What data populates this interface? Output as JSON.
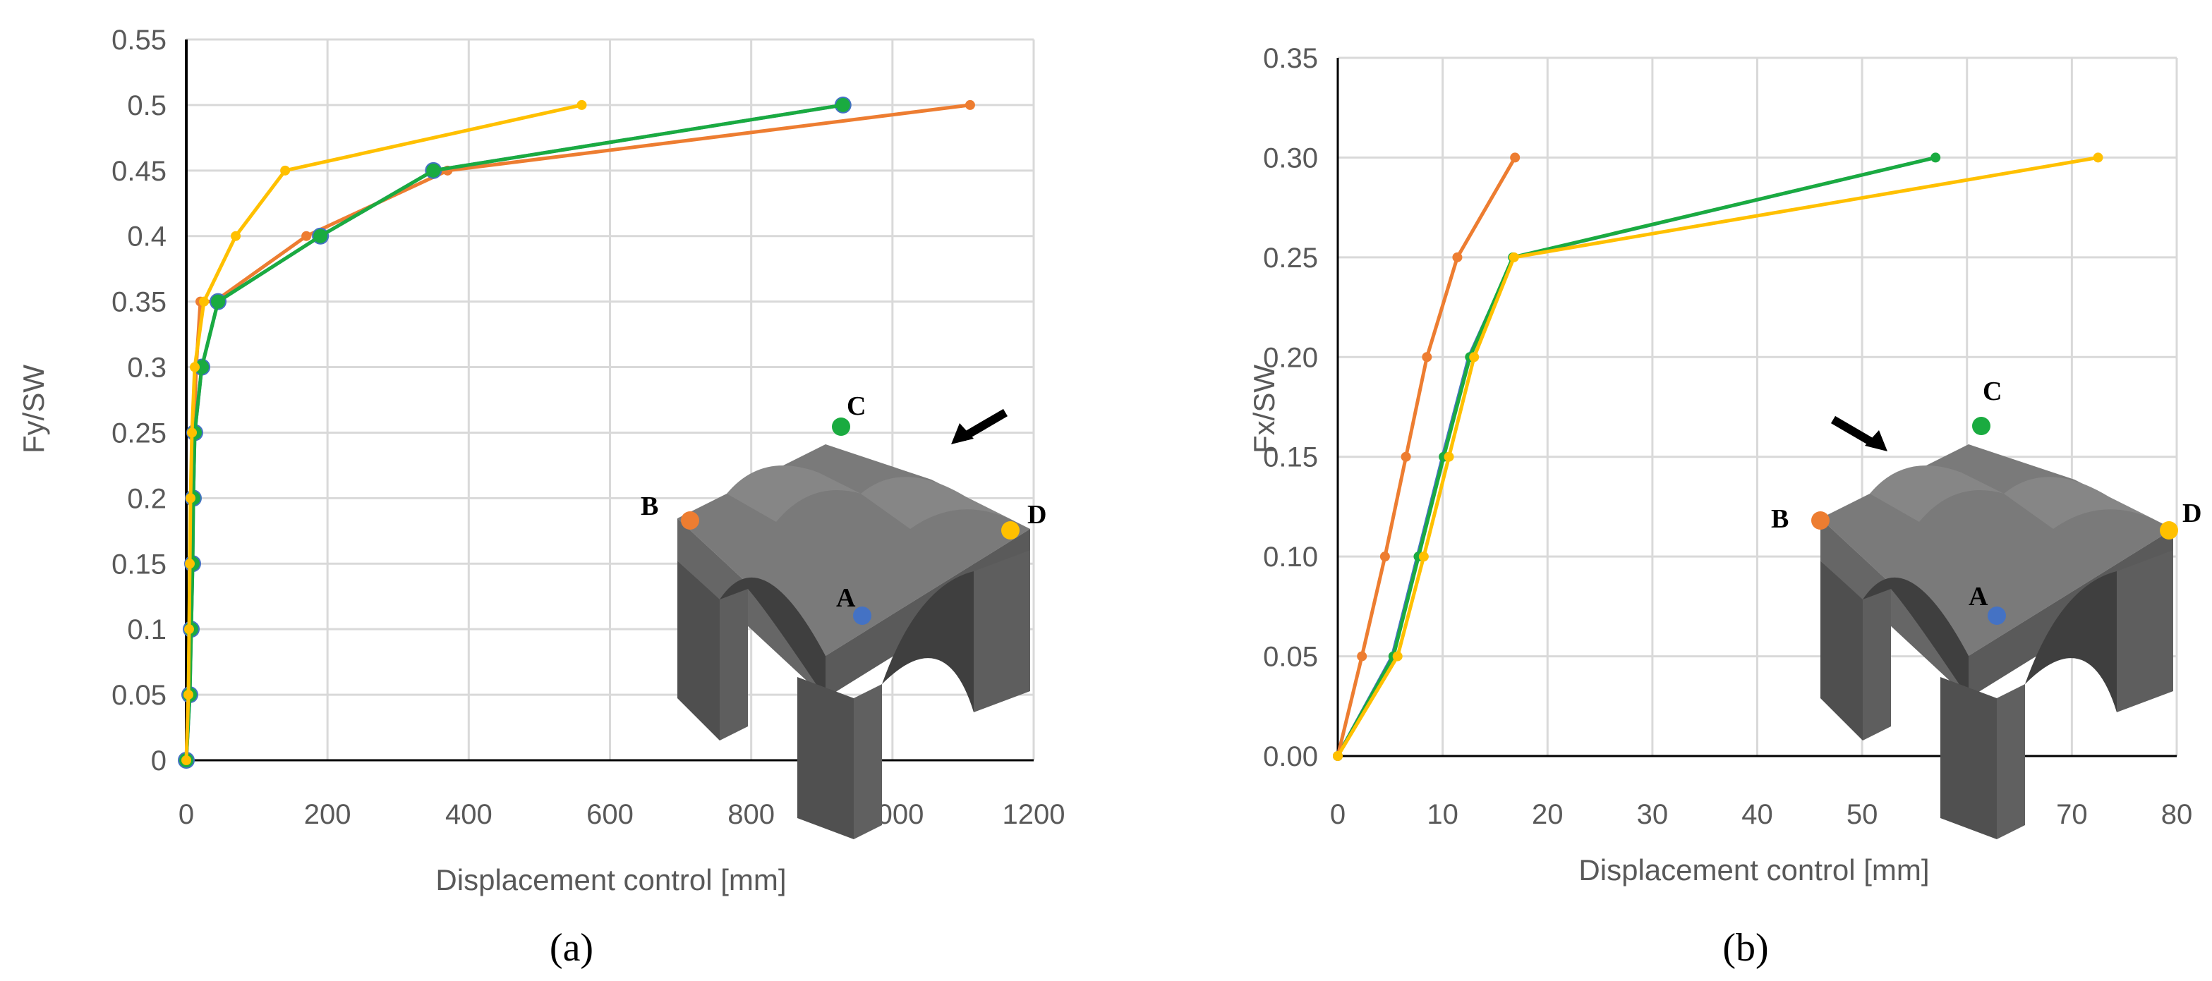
{
  "colors": {
    "A": "#4472C4",
    "B": "#ED7D31",
    "C": "#1AAB40",
    "D": "#FFC000",
    "grid": "#D9D9D9",
    "axis": "#000000",
    "model_top": "#7a7a7a",
    "model_front": "#5c5c5c",
    "model_side": "#4a4a4a"
  },
  "chart_data": [
    {
      "type": "line",
      "panel_label": "(a)",
      "xlabel": "Displacement control [mm]",
      "ylabel": "Fy/SW",
      "xlim": [
        0,
        1200
      ],
      "ylim": [
        0,
        0.55
      ],
      "xticks": [
        0,
        200,
        400,
        600,
        800,
        1000,
        1200
      ],
      "xtick_labels": [
        "0",
        "200",
        "400",
        "600",
        "800",
        "1000",
        "1200"
      ],
      "yticks": [
        0,
        0.05,
        0.1,
        0.15,
        0.2,
        0.25,
        0.3,
        0.35,
        0.4,
        0.45,
        0.5,
        0.55
      ],
      "ytick_labels": [
        "0",
        "0.05",
        "0.1",
        "0.15",
        "0.2",
        "0.25",
        "0.3",
        "0.35",
        "0.4",
        "0.45",
        "0.5",
        "0.55"
      ],
      "grid": true,
      "inset_labels": [
        "A",
        "B",
        "C",
        "D"
      ],
      "load_arrow": "from-right",
      "series": [
        {
          "name": "B",
          "color_key": "B",
          "marker": "small",
          "x": [
            0,
            3,
            5,
            7,
            9,
            11,
            14,
            20,
            40,
            170,
            370,
            1110
          ],
          "y": [
            0,
            0.05,
            0.1,
            0.15,
            0.2,
            0.25,
            0.3,
            0.35,
            0.35,
            0.4,
            0.45,
            0.5
          ]
        },
        {
          "name": "A",
          "color_key": "A",
          "marker": "large",
          "x": [
            0,
            5,
            7,
            9,
            10,
            12,
            22,
            45,
            190,
            350,
            930
          ],
          "y": [
            0,
            0.05,
            0.1,
            0.15,
            0.2,
            0.25,
            0.3,
            0.35,
            0.4,
            0.45,
            0.5
          ]
        },
        {
          "name": "C",
          "color_key": "C",
          "marker": "medium",
          "x": [
            0,
            5,
            7,
            9,
            10,
            12,
            22,
            45,
            190,
            350,
            930
          ],
          "y": [
            0,
            0.05,
            0.1,
            0.15,
            0.2,
            0.25,
            0.3,
            0.35,
            0.4,
            0.45,
            0.5
          ]
        },
        {
          "name": "D",
          "color_key": "D",
          "marker": "small",
          "x": [
            0,
            3,
            4,
            5,
            6,
            8,
            12,
            25,
            70,
            140,
            560
          ],
          "y": [
            0,
            0.05,
            0.1,
            0.15,
            0.2,
            0.25,
            0.3,
            0.35,
            0.4,
            0.45,
            0.5
          ]
        }
      ]
    },
    {
      "type": "line",
      "panel_label": "(b)",
      "xlabel": "Displacement control [mm]",
      "ylabel": "Fx/SW",
      "xlim": [
        0,
        80
      ],
      "ylim": [
        0,
        0.35
      ],
      "xticks": [
        0,
        10,
        20,
        30,
        40,
        50,
        60,
        70,
        80
      ],
      "xtick_labels": [
        "0",
        "10",
        "20",
        "30",
        "40",
        "50",
        "60",
        "70",
        "80"
      ],
      "yticks": [
        0,
        0.05,
        0.1,
        0.15,
        0.2,
        0.25,
        0.3,
        0.35
      ],
      "ytick_labels": [
        "0.00",
        "0.05",
        "0.10",
        "0.15",
        "0.20",
        "0.25",
        "0.30",
        "0.35"
      ],
      "grid": true,
      "inset_labels": [
        "A",
        "B",
        "C",
        "D"
      ],
      "load_arrow": "from-left",
      "series": [
        {
          "name": "A",
          "color_key": "A",
          "marker": "none",
          "x": [
            0,
            5.2,
            7.6,
            10,
            12.5,
            16.8,
            57
          ],
          "y": [
            0,
            0.05,
            0.1,
            0.15,
            0.2,
            0.25,
            0.3
          ]
        },
        {
          "name": "C",
          "color_key": "C",
          "marker": "small",
          "x": [
            0,
            5.3,
            7.7,
            10.1,
            12.6,
            16.7,
            57
          ],
          "y": [
            0,
            0.05,
            0.1,
            0.15,
            0.2,
            0.25,
            0.3
          ]
        },
        {
          "name": "B",
          "color_key": "B",
          "marker": "small",
          "x": [
            0,
            2.3,
            4.5,
            6.5,
            8.5,
            11.4,
            16.9
          ],
          "y": [
            0,
            0.05,
            0.1,
            0.15,
            0.2,
            0.25,
            0.3
          ]
        },
        {
          "name": "D",
          "color_key": "D",
          "marker": "small",
          "x": [
            0,
            5.7,
            8.2,
            10.6,
            13,
            16.8,
            72.5
          ],
          "y": [
            0,
            0.05,
            0.1,
            0.15,
            0.2,
            0.25,
            0.3
          ]
        }
      ]
    }
  ]
}
